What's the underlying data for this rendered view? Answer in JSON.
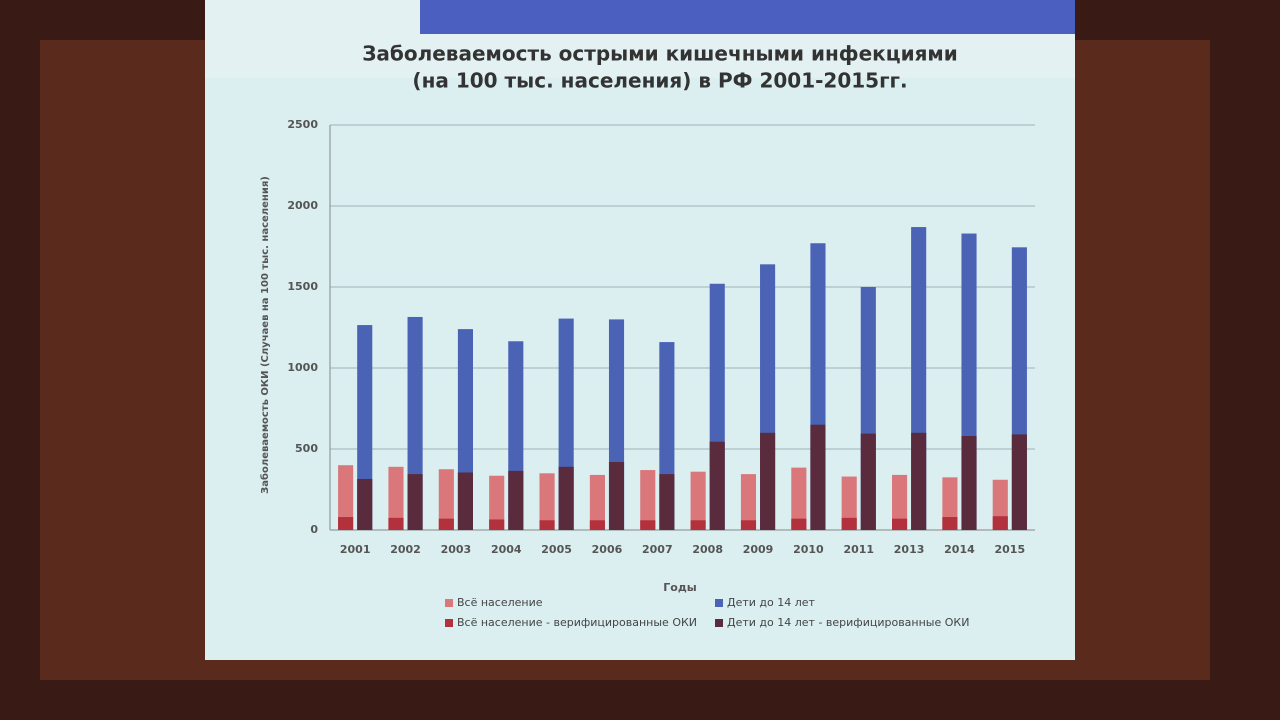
{
  "chart_data": {
    "type": "bar",
    "title": "Заболеваемость острыми кишечными инфекциями",
    "subtitle": "(на 100 тыс. населения) в РФ 2001-2015гг.",
    "y_label": "Заболеваемость ОКИ (Случаев на 100 тыс. населения)",
    "x_label": "Годы",
    "categories": [
      "2001",
      "2002",
      "2003",
      "2004",
      "2005",
      "2006",
      "2007",
      "2008",
      "2009",
      "2010",
      "2011",
      "2013",
      "2014",
      "2015"
    ],
    "series": [
      {
        "name": "Всё население",
        "color": "#d9777b",
        "values": [
          400,
          390,
          375,
          335,
          350,
          340,
          370,
          360,
          345,
          385,
          330,
          340,
          325,
          310
        ]
      },
      {
        "name": "Всё население  - верифицированные ОКИ",
        "color": "#b3313c",
        "values": [
          80,
          75,
          70,
          65,
          60,
          60,
          60,
          60,
          60,
          70,
          75,
          70,
          80,
          85
        ]
      },
      {
        "name": "Дети до 14 лет",
        "color": "#4a63b5",
        "values": [
          1265,
          1315,
          1240,
          1165,
          1305,
          1300,
          1160,
          1520,
          1640,
          1770,
          1500,
          1870,
          1830,
          1745
        ]
      },
      {
        "name": "Дети до 14 лет  - верифицированные ОКИ",
        "color": "#5a2b3d",
        "values": [
          315,
          345,
          355,
          365,
          390,
          420,
          345,
          545,
          600,
          650,
          595,
          600,
          580,
          590
        ]
      }
    ],
    "ylim": [
      0,
      2500
    ],
    "yticks": [
      0,
      500,
      1000,
      1500,
      2000,
      2500
    ],
    "grid": true
  }
}
